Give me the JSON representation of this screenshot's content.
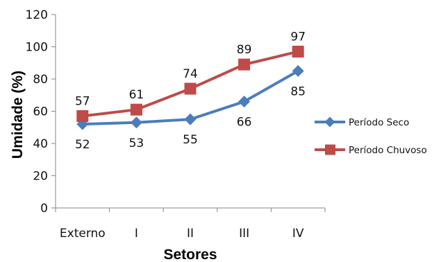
{
  "chart_data": {
    "type": "line",
    "categories": [
      "Externo",
      "I",
      "II",
      "III",
      "IV"
    ],
    "series": [
      {
        "name": "Período Seco",
        "values": [
          52,
          53,
          55,
          66,
          85
        ],
        "color": "#4a7ebb",
        "marker": "diamond",
        "label_position": "below"
      },
      {
        "name": "Período Chuvoso",
        "values": [
          57,
          61,
          74,
          89,
          97
        ],
        "color": "#be4b48",
        "marker": "square",
        "label_position": "above"
      }
    ],
    "xlabel": "Setores",
    "ylabel": "Umidade (%)",
    "ylim": [
      0,
      120
    ],
    "yticks": [
      0,
      20,
      40,
      60,
      80,
      100,
      120
    ],
    "grid": false,
    "legend_position": "right"
  }
}
